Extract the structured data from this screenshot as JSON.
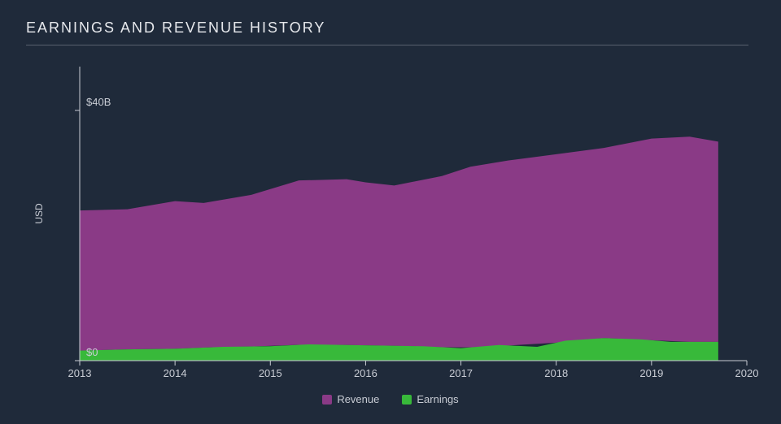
{
  "title": "EARNINGS AND REVENUE HISTORY",
  "chart": {
    "type": "area",
    "background_color": "#1f2a3a",
    "text_color": "#c8ccd4",
    "axis_color": "#c8ccd4",
    "title_underline_color": "#58606e",
    "y_axis_title": "USD",
    "x_ticks": [
      2013,
      2014,
      2015,
      2016,
      2017,
      2018,
      2019,
      2020
    ],
    "xlim": [
      2013,
      2020
    ],
    "y_ticks": [
      {
        "value": 0,
        "label": "$0"
      },
      {
        "value": 40,
        "label": "$40B"
      }
    ],
    "ylim": [
      0,
      47
    ],
    "series": [
      {
        "name": "Revenue",
        "color": "#8a3a86",
        "data": [
          {
            "x": 2013.0,
            "y": 24.0
          },
          {
            "x": 2013.5,
            "y": 24.2
          },
          {
            "x": 2014.0,
            "y": 25.5
          },
          {
            "x": 2014.3,
            "y": 25.2
          },
          {
            "x": 2014.8,
            "y": 26.5
          },
          {
            "x": 2015.3,
            "y": 28.8
          },
          {
            "x": 2015.8,
            "y": 29.0
          },
          {
            "x": 2016.0,
            "y": 28.5
          },
          {
            "x": 2016.3,
            "y": 28.0
          },
          {
            "x": 2016.8,
            "y": 29.5
          },
          {
            "x": 2017.1,
            "y": 31.0
          },
          {
            "x": 2017.5,
            "y": 32.0
          },
          {
            "x": 2018.0,
            "y": 33.0
          },
          {
            "x": 2018.5,
            "y": 34.0
          },
          {
            "x": 2019.0,
            "y": 35.5
          },
          {
            "x": 2019.4,
            "y": 35.8
          },
          {
            "x": 2019.7,
            "y": 35.0
          }
        ]
      },
      {
        "name": "Earnings",
        "color": "#38b93a",
        "data": [
          {
            "x": 2013.0,
            "y": 1.6
          },
          {
            "x": 2013.5,
            "y": 1.8
          },
          {
            "x": 2014.0,
            "y": 1.9
          },
          {
            "x": 2014.5,
            "y": 2.2
          },
          {
            "x": 2015.0,
            "y": 2.3
          },
          {
            "x": 2015.4,
            "y": 2.6
          },
          {
            "x": 2015.8,
            "y": 2.5
          },
          {
            "x": 2016.2,
            "y": 2.4
          },
          {
            "x": 2016.6,
            "y": 2.3
          },
          {
            "x": 2017.0,
            "y": 2.0
          },
          {
            "x": 2017.4,
            "y": 2.5
          },
          {
            "x": 2017.8,
            "y": 2.2
          },
          {
            "x": 2018.1,
            "y": 3.2
          },
          {
            "x": 2018.5,
            "y": 3.6
          },
          {
            "x": 2018.9,
            "y": 3.4
          },
          {
            "x": 2019.2,
            "y": 3.0
          },
          {
            "x": 2019.7,
            "y": 3.0
          }
        ]
      }
    ],
    "legend": [
      {
        "label": "Revenue",
        "key": "revenue",
        "color": "#8a3a86"
      },
      {
        "label": "Earnings",
        "key": "earnings",
        "color": "#38b93a"
      }
    ],
    "tick_fontsize": 13,
    "axis_title_fontsize": 12,
    "legend_fontsize": 13,
    "title_fontsize": 18
  }
}
